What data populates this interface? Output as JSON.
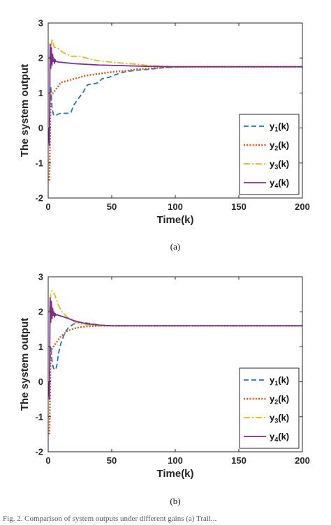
{
  "caption": "Fig. 2.  Comparison of system outputs under different gains (a) Trail...",
  "colors": {
    "y1": "#2176b7",
    "y2": "#d95319",
    "y3": "#edb120",
    "y4": "#7e2f8e",
    "axis": "#262626"
  },
  "chart_data": [
    {
      "type": "line",
      "panel_label": "(a)",
      "xlabel": "Time(k)",
      "ylabel": "The system output",
      "xlim": [
        0,
        200
      ],
      "ylim": [
        -2,
        3
      ],
      "xticks": [
        0,
        50,
        100,
        150,
        200
      ],
      "yticks": [
        -2,
        -1,
        0,
        1,
        2,
        3
      ],
      "grid": false,
      "legend_position": "bottom-right",
      "series": [
        {
          "name": "y1(k)",
          "base": "y",
          "sub": "1",
          "suffix": "(k)",
          "color": "#2176b7",
          "dash": "7,4",
          "x": [
            1,
            2,
            3,
            4,
            5,
            6,
            7,
            8,
            10,
            15,
            18,
            20,
            25,
            28,
            30,
            32,
            35,
            40,
            42,
            45,
            48,
            50,
            55,
            60,
            65,
            70,
            80,
            90,
            100,
            110,
            120,
            200
          ],
          "y": [
            0.15,
            1.2,
            0.6,
            0.4,
            0.35,
            0.35,
            0.38,
            0.4,
            0.42,
            0.42,
            0.45,
            0.65,
            0.9,
            1.05,
            1.2,
            1.25,
            1.25,
            1.3,
            1.4,
            1.43,
            1.45,
            1.48,
            1.55,
            1.6,
            1.63,
            1.65,
            1.68,
            1.72,
            1.74,
            1.75,
            1.75,
            1.75
          ]
        },
        {
          "name": "y2(k)",
          "base": "y",
          "sub": "2",
          "suffix": "(k)",
          "color": "#d95319",
          "dash": "2,2.2",
          "x": [
            1,
            2,
            3,
            4,
            5,
            6,
            8,
            10,
            15,
            20,
            25,
            30,
            40,
            50,
            60,
            70,
            80,
            100,
            120,
            200
          ],
          "y": [
            -1.5,
            0.9,
            1.0,
            1.0,
            1.05,
            1.1,
            1.2,
            1.3,
            1.35,
            1.4,
            1.45,
            1.5,
            1.55,
            1.6,
            1.63,
            1.68,
            1.7,
            1.75,
            1.75,
            1.75
          ]
        },
        {
          "name": "y3(k)",
          "base": "y",
          "sub": "3",
          "suffix": "(k)",
          "color": "#edb120",
          "dash": "9,3,2,3",
          "x": [
            1,
            2,
            3,
            4,
            5,
            7,
            10,
            12,
            15,
            18,
            20,
            25,
            30,
            35,
            40,
            50,
            60,
            70,
            80,
            100,
            200
          ],
          "y": [
            2.0,
            2.2,
            2.55,
            2.4,
            2.3,
            2.3,
            2.2,
            2.15,
            2.1,
            2.05,
            2.05,
            2.05,
            2.0,
            1.95,
            1.92,
            1.88,
            1.85,
            1.82,
            1.78,
            1.75,
            1.75
          ]
        },
        {
          "name": "y4(k)",
          "base": "y",
          "sub": "4",
          "suffix": "(k)",
          "color": "#7e2f8e",
          "dash": "",
          "x": [
            0,
            1,
            1.5,
            2,
            2.5,
            3,
            3.5,
            4,
            4.5,
            5,
            5.5,
            6,
            7,
            8,
            10,
            15,
            20,
            30,
            40,
            60,
            80,
            100,
            200
          ],
          "y": [
            0,
            -0.5,
            2.4,
            1.7,
            2.3,
            1.8,
            2.1,
            1.9,
            2.0,
            1.85,
            1.95,
            1.9,
            1.9,
            1.88,
            1.88,
            1.86,
            1.84,
            1.82,
            1.8,
            1.78,
            1.76,
            1.75,
            1.75
          ]
        }
      ]
    },
    {
      "type": "line",
      "panel_label": "(b)",
      "xlabel": "Time(k)",
      "ylabel": "The system output",
      "xlim": [
        0,
        200
      ],
      "ylim": [
        -2,
        3
      ],
      "xticks": [
        0,
        50,
        100,
        150,
        200
      ],
      "yticks": [
        -2,
        -1,
        0,
        1,
        2,
        3
      ],
      "grid": false,
      "legend_position": "bottom-right",
      "series": [
        {
          "name": "y1(k)",
          "base": "y",
          "sub": "1",
          "suffix": "(k)",
          "color": "#2176b7",
          "dash": "7,4",
          "x": [
            1,
            2,
            3,
            4,
            5,
            6,
            7,
            8,
            10,
            12,
            14,
            16,
            18,
            20,
            25,
            30,
            40,
            50,
            200
          ],
          "y": [
            0.2,
            1.0,
            0.6,
            0.4,
            0.35,
            0.35,
            0.5,
            0.8,
            1.1,
            1.3,
            1.45,
            1.55,
            1.6,
            1.65,
            1.7,
            1.68,
            1.62,
            1.6,
            1.6
          ]
        },
        {
          "name": "y2(k)",
          "base": "y",
          "sub": "2",
          "suffix": "(k)",
          "color": "#d95319",
          "dash": "2,2.2",
          "x": [
            1,
            2,
            3,
            4,
            5,
            6,
            8,
            10,
            15,
            20,
            25,
            30,
            40,
            50,
            200
          ],
          "y": [
            -1.5,
            0.8,
            0.95,
            1.0,
            1.05,
            1.1,
            1.2,
            1.3,
            1.45,
            1.52,
            1.56,
            1.58,
            1.6,
            1.6,
            1.6
          ]
        },
        {
          "name": "y3(k)",
          "base": "y",
          "sub": "3",
          "suffix": "(k)",
          "color": "#edb120",
          "dash": "9,3,2,3",
          "x": [
            1,
            2,
            3,
            4,
            5,
            6,
            8,
            10,
            12,
            15,
            20,
            25,
            30,
            40,
            50,
            200
          ],
          "y": [
            2.0,
            2.5,
            2.6,
            2.55,
            2.5,
            2.4,
            2.2,
            2.05,
            1.95,
            1.85,
            1.72,
            1.66,
            1.63,
            1.6,
            1.6,
            1.6
          ]
        },
        {
          "name": "y4(k)",
          "base": "y",
          "sub": "4",
          "suffix": "(k)",
          "color": "#7e2f8e",
          "dash": "",
          "x": [
            0,
            1,
            1.5,
            2,
            2.5,
            3,
            3.5,
            4,
            4.5,
            5,
            5.5,
            6,
            7,
            8,
            10,
            15,
            20,
            25,
            30,
            40,
            50,
            200
          ],
          "y": [
            0,
            -0.5,
            2.4,
            1.7,
            2.3,
            1.8,
            2.1,
            1.9,
            2.0,
            1.85,
            1.95,
            1.9,
            1.92,
            1.9,
            1.88,
            1.82,
            1.75,
            1.7,
            1.66,
            1.62,
            1.6,
            1.6
          ]
        }
      ]
    }
  ]
}
